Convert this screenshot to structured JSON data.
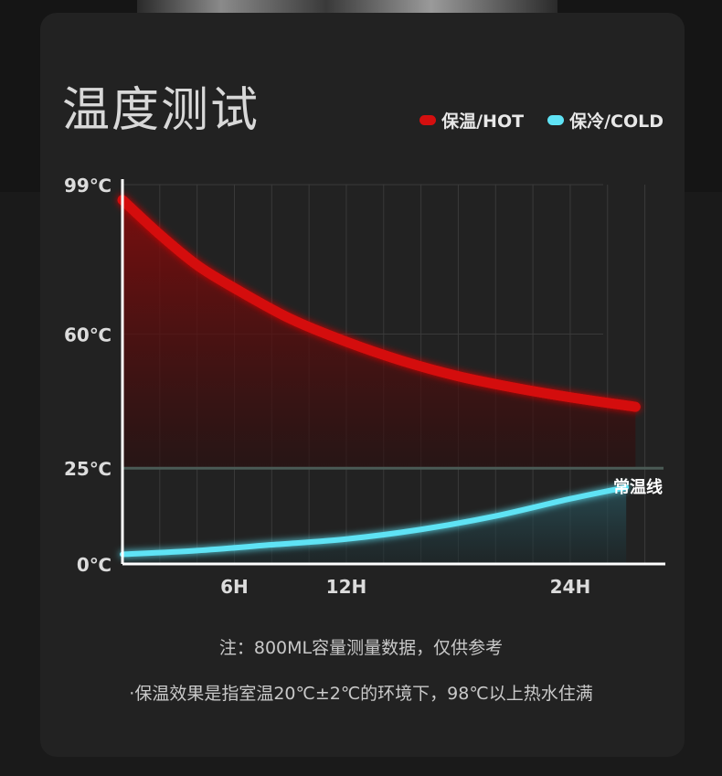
{
  "title": "温度测试",
  "legend": {
    "hot_label": "保温/HOT",
    "cold_label": "保冷/COLD",
    "hot_color": "#d40f0f",
    "cold_color": "#5fe3f5"
  },
  "notes": {
    "line1": "注：800ML容量测量数据，仅供参考",
    "line2": "·保温效果是指室温20℃±2℃的环境下，98℃以上热水住满"
  },
  "chart_data": {
    "type": "line",
    "x_ticks": [
      {
        "value": 6,
        "label": "6H"
      },
      {
        "value": 12,
        "label": "12H"
      },
      {
        "value": 24,
        "label": "24H"
      }
    ],
    "y_ticks": [
      {
        "value": 0,
        "label": "0℃"
      },
      {
        "value": 25,
        "label": "25℃"
      },
      {
        "value": 60,
        "label": "60℃"
      },
      {
        "value": 99,
        "label": "99℃"
      }
    ],
    "xlim": [
      0,
      29
    ],
    "ylim": [
      0,
      99
    ],
    "grid": true,
    "reference_line": {
      "value": 25,
      "label": "常温线"
    },
    "series": [
      {
        "name": "保温/HOT",
        "color": "#d40f0f",
        "x": [
          0,
          2,
          4,
          6,
          9,
          12,
          15,
          18,
          21,
          24,
          27.5
        ],
        "y": [
          95,
          86,
          78,
          72,
          64,
          58,
          53,
          49,
          46,
          43.5,
          41
        ]
      },
      {
        "name": "保冷/COLD",
        "color": "#5fe3f5",
        "x": [
          0,
          4,
          8,
          12,
          16,
          20,
          24,
          27
        ],
        "y": [
          2.5,
          3.5,
          5,
          6.5,
          9,
          12.5,
          17,
          20
        ]
      }
    ]
  }
}
